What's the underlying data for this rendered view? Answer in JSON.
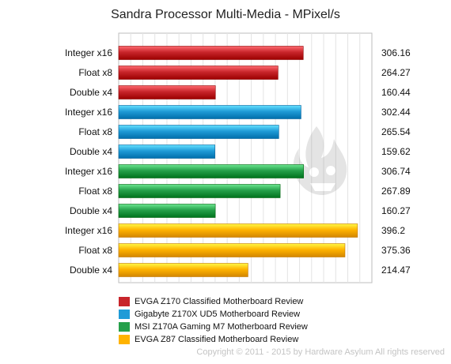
{
  "chart_data": {
    "type": "bar",
    "orientation": "horizontal",
    "title": "Sandra Processor Multi-Media - MPixel/s",
    "xlim": [
      0,
      420
    ],
    "grid": true,
    "legend_position": "bottom-left",
    "series": [
      {
        "name": "EVGA Z170 Classified Motherboard Review",
        "color": "#c8252b",
        "categories": [
          "Integer x16",
          "Float x8",
          "Double x4"
        ],
        "values": [
          306.16,
          264.27,
          160.44
        ],
        "labels": [
          "306.16",
          "264.27",
          "160.44"
        ]
      },
      {
        "name": "Gigabyte Z170X UD5 Motherboard Review",
        "color": "#1f9bd7",
        "categories": [
          "Integer x16",
          "Float x8",
          "Double x4"
        ],
        "values": [
          302.44,
          265.54,
          159.62
        ],
        "labels": [
          "302.44",
          "265.54",
          "159.62"
        ]
      },
      {
        "name": "MSI Z170A Gaming M7 Motherboard Review",
        "color": "#25a04a",
        "categories": [
          "Integer x16",
          "Float x8",
          "Double x4"
        ],
        "values": [
          306.74,
          267.89,
          160.27
        ],
        "labels": [
          "306.74",
          "267.89",
          "160.27"
        ]
      },
      {
        "name": "EVGA Z87 Classified Motherboard Review",
        "color": "#ffb300",
        "categories": [
          "Integer x16",
          "Float x8",
          "Double x4"
        ],
        "values": [
          396.2,
          375.36,
          214.47
        ],
        "labels": [
          "396.2",
          "375.36",
          "214.47"
        ]
      }
    ]
  },
  "footer": {
    "copyright": "Copyright © 2011 - 2015 by Hardware Asylum All rights reserved"
  }
}
